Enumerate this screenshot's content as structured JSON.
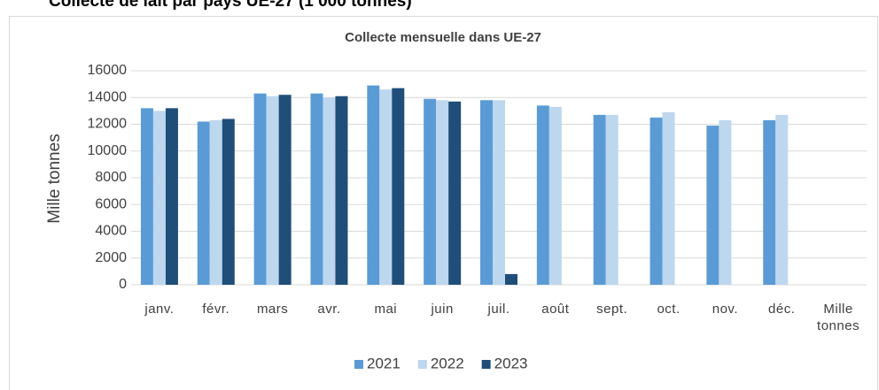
{
  "heading": "Collecte de lait par pays UE-27  (1 000 tonnes)",
  "chart_data": {
    "type": "bar",
    "title": "Collecte mensuelle dans UE-27",
    "y_label": "Mille tonnes",
    "categories": [
      "janv.",
      "févr.",
      "mars",
      "avr.",
      "mai",
      "juin",
      "juil.",
      "août",
      "sept.",
      "oct.",
      "nov.",
      "déc.",
      "Mille tonnes"
    ],
    "series": [
      {
        "name": "2021",
        "color": "#5b9bd5",
        "values": [
          13200,
          12200,
          14300,
          14300,
          14900,
          13900,
          13800,
          13400,
          12700,
          12500,
          11900,
          12300,
          null
        ]
      },
      {
        "name": "2022",
        "color": "#bdd7ee",
        "values": [
          13000,
          12300,
          14100,
          14000,
          14600,
          13800,
          13800,
          13300,
          12700,
          12900,
          12300,
          12700,
          null
        ]
      },
      {
        "name": "2023",
        "color": "#1f4e79",
        "values": [
          13200,
          12400,
          14200,
          14100,
          14700,
          13700,
          800,
          null,
          null,
          null,
          null,
          null,
          null
        ]
      }
    ],
    "ylim": [
      0,
      16000
    ],
    "yticks": [
      0,
      2000,
      4000,
      6000,
      8000,
      10000,
      12000,
      14000,
      16000
    ],
    "grid": true,
    "legend": "bottom"
  }
}
